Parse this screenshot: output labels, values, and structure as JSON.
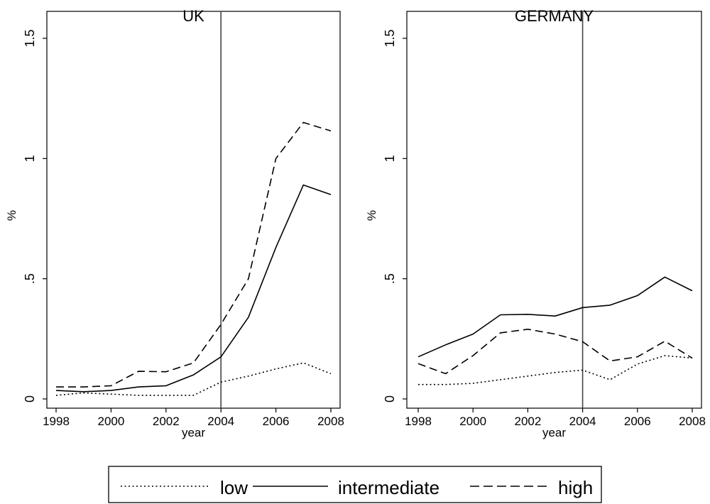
{
  "chart_data": [
    {
      "type": "line",
      "title": "UK",
      "xlabel": "year",
      "ylabel": "%",
      "xlim": [
        1998,
        2008
      ],
      "ylim": [
        0,
        1.5
      ],
      "xticks": [
        1998,
        2000,
        2002,
        2004,
        2006,
        2008
      ],
      "yticks": [
        0,
        0.5,
        1,
        1.5
      ],
      "ytick_labels": [
        "0",
        ".5",
        "1",
        "1.5"
      ],
      "vline": 2004,
      "x": [
        1998,
        1999,
        2000,
        2001,
        2002,
        2003,
        2004,
        2005,
        2006,
        2007,
        2008
      ],
      "series": [
        {
          "name": "low",
          "style": "dotted",
          "values": [
            0.015,
            0.025,
            0.02,
            0.015,
            0.015,
            0.015,
            0.07,
            0.095,
            0.125,
            0.15,
            0.105
          ]
        },
        {
          "name": "intermediate",
          "style": "solid",
          "values": [
            0.035,
            0.03,
            0.035,
            0.05,
            0.055,
            0.1,
            0.175,
            0.34,
            0.63,
            0.89,
            0.85
          ]
        },
        {
          "name": "high",
          "style": "dashed",
          "values": [
            0.05,
            0.05,
            0.055,
            0.115,
            0.113,
            0.15,
            0.31,
            0.5,
            1.0,
            1.15,
            1.115
          ]
        }
      ]
    },
    {
      "type": "line",
      "title": "GERMANY",
      "xlabel": "year",
      "ylabel": "%",
      "xlim": [
        1998,
        2008
      ],
      "ylim": [
        0,
        1.5
      ],
      "xticks": [
        1998,
        2000,
        2002,
        2004,
        2006,
        2008
      ],
      "yticks": [
        0,
        0.5,
        1,
        1.5
      ],
      "ytick_labels": [
        "0",
        ".5",
        "1",
        "1.5"
      ],
      "vline": 2004,
      "x": [
        1998,
        1999,
        2000,
        2001,
        2002,
        2003,
        2004,
        2005,
        2006,
        2007,
        2008
      ],
      "series": [
        {
          "name": "low",
          "style": "dotted",
          "values": [
            0.06,
            0.06,
            0.065,
            0.08,
            0.095,
            0.11,
            0.12,
            0.08,
            0.145,
            0.18,
            0.17
          ]
        },
        {
          "name": "intermediate",
          "style": "solid",
          "values": [
            0.175,
            0.225,
            0.27,
            0.35,
            0.352,
            0.345,
            0.38,
            0.39,
            0.43,
            0.507,
            0.45
          ]
        },
        {
          "name": "high",
          "style": "dashed",
          "values": [
            0.147,
            0.105,
            0.18,
            0.275,
            0.29,
            0.27,
            0.238,
            0.158,
            0.175,
            0.24,
            0.17
          ]
        }
      ]
    }
  ],
  "legend": [
    {
      "label": "low",
      "style": "dotted"
    },
    {
      "label": "intermediate",
      "style": "solid"
    },
    {
      "label": "high",
      "style": "dashed"
    }
  ]
}
